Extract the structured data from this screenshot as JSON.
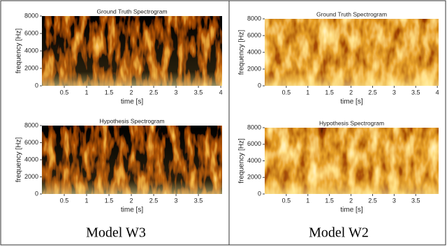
{
  "chart_data": [
    {
      "type": "spectrogram",
      "title": "Ground Truth Spectrogram",
      "x_label": "time [s]",
      "y_label": "frequency [Hz]",
      "xlim": [
        0,
        4.03
      ],
      "ylim": [
        0,
        8000
      ],
      "xticks": [
        0.5,
        1.0,
        1.5,
        2.0,
        2.5,
        3.0,
        3.5,
        4.0
      ],
      "yticks": [
        0,
        2000,
        4000,
        6000,
        8000
      ]
    },
    {
      "type": "spectrogram",
      "title": "Hypothesis Spectrogram",
      "x_label": "time [s]",
      "y_label": "frequency [Hz]",
      "xlim": [
        0,
        4.03
      ],
      "ylim": [
        0,
        8000
      ],
      "xticks": [
        0.5,
        1.0,
        1.5,
        2.0,
        2.5,
        3.0,
        3.5
      ],
      "yticks": [
        0,
        2000,
        4000,
        6000,
        8000
      ]
    },
    {
      "type": "spectrogram",
      "title": "Ground Truth Spectrogram",
      "x_label": "time [s]",
      "y_label": "frequency [Hz]",
      "xlim": [
        0,
        4.03
      ],
      "ylim": [
        0,
        8000
      ],
      "xticks": [
        0.5,
        1.0,
        1.5,
        2.0,
        2.5,
        3.0,
        3.5,
        4.0
      ],
      "yticks": [
        0,
        2000,
        4000,
        6000,
        8000
      ]
    },
    {
      "type": "spectrogram",
      "title": "Hypothesis Spectrogram",
      "x_label": "time [s]",
      "y_label": "frequency [Hz]",
      "xlim": [
        0,
        4.03
      ],
      "ylim": [
        0,
        8000
      ],
      "xticks": [
        0.5,
        1.0,
        1.5,
        2.0,
        2.5,
        3.0,
        3.5
      ],
      "yticks": [
        0,
        2000,
        4000,
        6000,
        8000
      ]
    }
  ],
  "captions": [
    "Model W3",
    "Model W2"
  ]
}
